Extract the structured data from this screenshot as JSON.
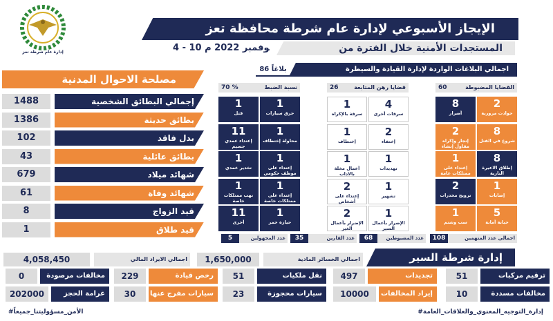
{
  "header": {
    "title": "الإيجاز الأسبوعي لإدارة عام شرطة محافظة تعز",
    "subtitle": "المستجدات الأمنية خلال الفترة من",
    "date": "4 - 10 نوفمبر 2022 م",
    "logo_caption": "إدارة عام شرطة تعز"
  },
  "civil": {
    "title": "مصلحة الاحوال المدنية",
    "rows": [
      {
        "value": "1488",
        "label": "إجمالي البطائق الشخصية",
        "color": "navy"
      },
      {
        "value": "1386",
        "label": "بطائق حديثة",
        "color": "orange"
      },
      {
        "value": "102",
        "label": "بدل فاقد",
        "color": "navy"
      },
      {
        "value": "43",
        "label": "بطائق عائلية",
        "color": "orange"
      },
      {
        "value": "679",
        "label": "شهائد ميلاد",
        "color": "navy"
      },
      {
        "value": "61",
        "label": "شهائد وفاة",
        "color": "orange"
      },
      {
        "value": "8",
        "label": "قيد الزواج",
        "color": "navy"
      },
      {
        "value": "1",
        "label": "قيد طلاق",
        "color": "orange"
      }
    ]
  },
  "reports": {
    "label": "اجمالي البلاغات الواردة لإدارة القيادة والسيطرة",
    "value": "86 بلاغاً"
  },
  "columns": {
    "seized": {
      "label": "القضايا المضبوطة",
      "value": "60"
    },
    "pending": {
      "label": "قضايا رهن المتابعة",
      "value": "26"
    },
    "rate": {
      "label": "نسبة الضبط",
      "value": "70 %"
    }
  },
  "cells": {
    "seized": [
      {
        "n": "2",
        "c": "حوادث مرورية"
      },
      {
        "n": "8",
        "c": "أضرار"
      },
      {
        "n": "8",
        "c": "شروع في القتل"
      },
      {
        "n": "2",
        "c": "إتجار وإكراه مقاول إنشاء"
      },
      {
        "n": "8",
        "c": "إطلاق الاعيرة النارية"
      },
      {
        "n": "1",
        "c": "إعتداء على ممتلكات عامة"
      },
      {
        "n": "1",
        "c": "إصابات"
      },
      {
        "n": "2",
        "c": "ترويج مخدرات"
      },
      {
        "n": "5",
        "c": "خيانة أمانة"
      },
      {
        "n": "1",
        "c": "سب وشتم"
      }
    ],
    "pending": [
      {
        "n": "4",
        "c": "سرقات أخرى"
      },
      {
        "n": "1",
        "c": "سرقة بالإكراه"
      },
      {
        "n": "2",
        "c": "إختفاء"
      },
      {
        "n": "1",
        "c": "إختطاف"
      },
      {
        "n": "1",
        "c": "تهديدات"
      },
      {
        "n": "1",
        "c": "أعمال مخلة بالاداب"
      },
      {
        "n": "1",
        "c": "تشهير"
      },
      {
        "n": "2",
        "c": "إعتداء على أشخاص"
      },
      {
        "n": "1",
        "c": "الإضرار بأعمال السير"
      },
      {
        "n": "2",
        "c": "الإضرار بأعمال الغير"
      }
    ],
    "rate": [
      {
        "n": "1",
        "c": "حرق سيارات"
      },
      {
        "n": "1",
        "c": "قتل"
      },
      {
        "n": "1",
        "c": "محاولة إختطاف"
      },
      {
        "n": "11",
        "c": "إعتداء عمدي جسيم"
      },
      {
        "n": "1",
        "c": "إعتداء على موظف حكومي"
      },
      {
        "n": "1",
        "c": "تخدير عمدي"
      },
      {
        "n": "1",
        "c": "إعتداء على ممتلكات خاصة"
      },
      {
        "n": "1",
        "c": "نهب ممتلكات خاصة"
      },
      {
        "n": "1",
        "c": "حيازة خمر"
      },
      {
        "n": "11",
        "c": "أخرى"
      }
    ]
  },
  "totals": [
    {
      "value": "108",
      "label": "اجمالي عدد المتهمين"
    },
    {
      "value": "68",
      "label": "عدد المضبوطين"
    },
    {
      "value": "35",
      "label": "عدد الفارين"
    },
    {
      "value": "5",
      "label": "عدد المجهولين"
    }
  ],
  "losses": {
    "material_label": "اجمالي الخسائر المادية",
    "material_value": "1,650,000",
    "revenue_label": "اجمالي الايراد المالي",
    "revenue_value": "4,058,450"
  },
  "traffic": {
    "title": "إدارة شرطة السير",
    "items": [
      {
        "value": "51",
        "label": "ترقيم مركبات"
      },
      {
        "value": "497",
        "label": "تجديدات"
      },
      {
        "value": "51",
        "label": "نقل ملكيات"
      },
      {
        "value": "229",
        "label": "رخص قيادة"
      },
      {
        "value": "0",
        "label": "مخالفات مرصودة"
      },
      {
        "value": "10",
        "label": "مخالفات مسددة"
      },
      {
        "value": "10000",
        "label": "إيراد المخالفات"
      },
      {
        "value": "23",
        "label": "سيارات محجوزة"
      },
      {
        "value": "30",
        "label": "سيارات مفرج عنها"
      },
      {
        "value": "202000",
        "label": "غرامة الحجز"
      }
    ]
  },
  "footer": {
    "right": "#إدارة_التوجيه_المعنوي_والعلاقات_العامة",
    "left": "#الأمن_مسؤوليتنا_جميعاً"
  },
  "colors": {
    "navy": "#1f2a56",
    "orange": "#ee8a3a",
    "grey": "#dcdcdc"
  }
}
